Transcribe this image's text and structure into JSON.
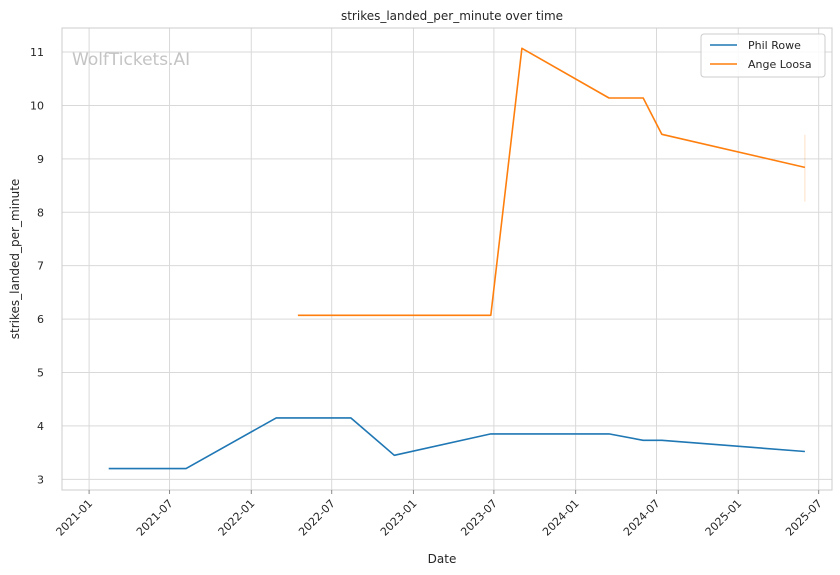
{
  "chart_data": {
    "type": "line",
    "title": "strikes_landed_per_minute over time",
    "xlabel": "Date",
    "ylabel": "strikes_landed_per_minute",
    "watermark": "WolfTickets.AI",
    "x_ticks": [
      "2021-01",
      "2021-07",
      "2022-01",
      "2022-07",
      "2023-01",
      "2023-07",
      "2024-01",
      "2024-07",
      "2025-01",
      "2025-07"
    ],
    "y_ticks": [
      3,
      4,
      5,
      6,
      7,
      8,
      9,
      10,
      11
    ],
    "xlim": [
      "2020-11-01",
      "2025-07-31"
    ],
    "ylim": [
      2.8,
      11.45
    ],
    "grid": true,
    "legend_position": "top-right",
    "series": [
      {
        "name": "Phil Rowe",
        "color": "#1f77b4",
        "points": [
          {
            "x": "2021-02-14",
            "y": 3.2
          },
          {
            "x": "2021-08-07",
            "y": 3.2
          },
          {
            "x": "2022-02-26",
            "y": 4.15
          },
          {
            "x": "2022-08-13",
            "y": 4.15
          },
          {
            "x": "2022-11-19",
            "y": 3.45
          },
          {
            "x": "2023-06-24",
            "y": 3.85
          },
          {
            "x": "2024-03-16",
            "y": 3.85
          },
          {
            "x": "2024-06-01",
            "y": 3.73
          },
          {
            "x": "2024-07-13",
            "y": 3.73
          },
          {
            "x": "2025-05-31",
            "y": 3.52
          }
        ]
      },
      {
        "name": "Ange Loosa",
        "color": "#ff7f0e",
        "points": [
          {
            "x": "2022-04-16",
            "y": 6.07
          },
          {
            "x": "2023-06-24",
            "y": 6.07
          },
          {
            "x": "2023-09-02",
            "y": 11.07
          },
          {
            "x": "2024-03-16",
            "y": 10.14
          },
          {
            "x": "2024-06-01",
            "y": 10.14
          },
          {
            "x": "2024-07-13",
            "y": 9.46
          },
          {
            "x": "2025-05-31",
            "y": 8.84
          }
        ],
        "error_bar": {
          "x": "2025-05-31",
          "low": 8.2,
          "high": 9.45
        }
      }
    ]
  }
}
